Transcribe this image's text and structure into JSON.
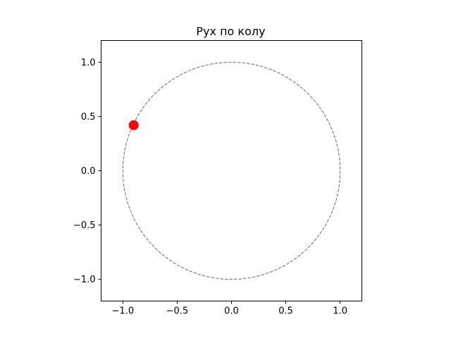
{
  "chart_data": {
    "type": "scatter",
    "title": "Рух по колу",
    "xlabel": "",
    "ylabel": "",
    "xlim": [
      -1.2,
      1.2
    ],
    "ylim": [
      -1.2,
      1.2
    ],
    "xticks": [
      -1.0,
      -0.5,
      0.0,
      0.5,
      1.0
    ],
    "yticks": [
      -1.0,
      -0.5,
      0.0,
      0.5,
      1.0
    ],
    "xtick_labels": [
      "−1.0",
      "−0.5",
      "0.0",
      "0.5",
      "1.0"
    ],
    "ytick_labels": [
      "−1.0",
      "−0.5",
      "0.0",
      "0.5",
      "1.0"
    ],
    "grid": false,
    "circle": {
      "center": [
        0,
        0
      ],
      "radius": 1.0,
      "style": "dashed",
      "color": "#808080"
    },
    "points": [
      {
        "x": -0.9,
        "y": 0.42,
        "color": "#ff0000"
      }
    ]
  }
}
